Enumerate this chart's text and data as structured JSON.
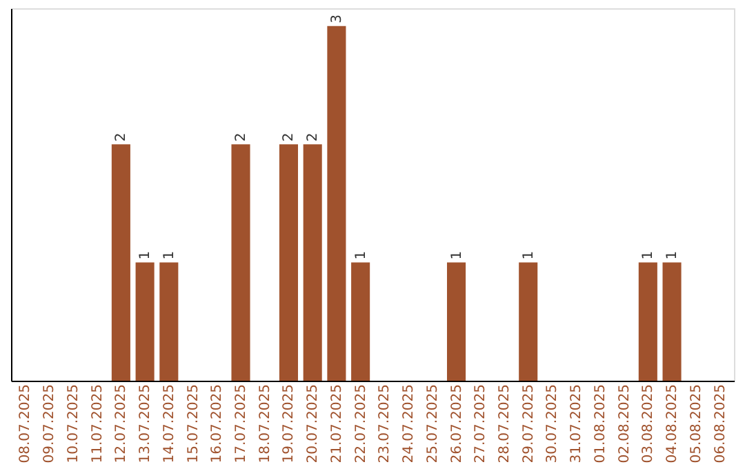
{
  "chart_data": {
    "type": "bar",
    "categories": [
      "08.07.2025",
      "09.07.2025",
      "10.07.2025",
      "11.07.2025",
      "12.07.2025",
      "13.07.2025",
      "14.07.2025",
      "15.07.2025",
      "16.07.2025",
      "17.07.2025",
      "18.07.2025",
      "19.07.2025",
      "20.07.2025",
      "21.07.2025",
      "22.07.2025",
      "23.07.2025",
      "24.07.2025",
      "25.07.2025",
      "26.07.2025",
      "27.07.2025",
      "28.07.2025",
      "29.07.2025",
      "30.07.2025",
      "31.07.2025",
      "01.08.2025",
      "02.08.2025",
      "03.08.2025",
      "04.08.2025",
      "05.08.2025",
      "06.08.2025"
    ],
    "values": [
      0,
      0,
      0,
      0,
      2,
      1,
      1,
      0,
      0,
      2,
      0,
      2,
      2,
      3,
      1,
      0,
      0,
      0,
      1,
      0,
      0,
      1,
      0,
      0,
      0,
      0,
      1,
      1,
      0,
      0
    ],
    "value_labels": [
      null,
      null,
      null,
      null,
      "2",
      "1",
      "1",
      null,
      null,
      "2",
      null,
      "2",
      "2",
      "3",
      "1",
      null,
      null,
      null,
      "1",
      null,
      null,
      "1",
      null,
      null,
      null,
      null,
      "1",
      "1",
      null,
      null
    ],
    "color": "#a0522d",
    "tick_labels": "x",
    "grid": false
  }
}
